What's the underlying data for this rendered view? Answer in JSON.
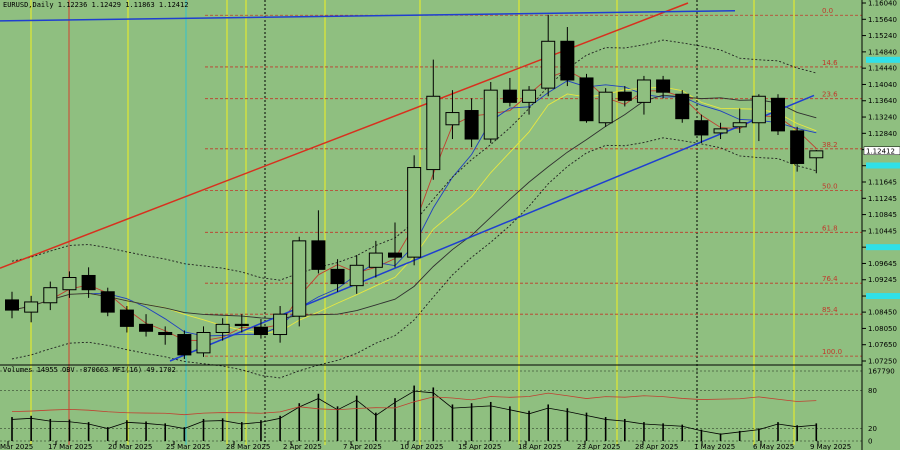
{
  "header": {
    "symbol_line": "EURUSD,Daily  1.12236 1.12429 1.11863 1.12412",
    "indicator_line": "Volumes 14955  OBV -870663  MFI(16) 49.1702"
  },
  "colors": {
    "background": "#8fbf80",
    "bull_candle": "#8fbf80",
    "bear_candle": "#000000",
    "trend_red": "#d8301e",
    "trend_blue": "#1f3fd0",
    "fib_level": "#c0392b",
    "vline_yellow": "#f0f020",
    "vline_red": "#d04030",
    "vline_cyan": "#30c0d0",
    "price_marker": "#30e0e8"
  },
  "chart_data": {
    "type": "candlestick",
    "symbol": "EURUSD",
    "timeframe": "Daily",
    "ylim": [
      1.0725,
      1.1604
    ],
    "price_ticks": [
      "1.16040",
      "1.15640",
      "1.15240",
      "1.14840",
      "1.14440",
      "1.14040",
      "1.13640",
      "1.13240",
      "1.12840",
      "1.12440",
      "1.12045",
      "1.11645",
      "1.11245",
      "1.10845",
      "1.10445",
      "1.10045",
      "1.09645",
      "1.09245",
      "1.08845",
      "1.08450",
      "1.08050",
      "1.07650",
      "1.07250"
    ],
    "date_labels": [
      "Mar 2025",
      "17 Mar 2025",
      "20 Mar 2025",
      "25 Mar 2025",
      "28 Mar 2025",
      "2 Apr 2025",
      "7 Apr 2025",
      "10 Apr 2025",
      "15 Apr 2025",
      "18 Apr 2025",
      "23 Apr 2025",
      "28 Apr 2025",
      "1 May 2025",
      "6 May 2025",
      "9 May 2025"
    ],
    "fib_levels": [
      {
        "label": "0.0",
        "price": 1.1574
      },
      {
        "label": "14.6",
        "price": 1.1447
      },
      {
        "label": "23.6",
        "price": 1.1369
      },
      {
        "label": "38.2",
        "price": 1.1246
      },
      {
        "label": "50.0",
        "price": 1.1144
      },
      {
        "label": "61.8",
        "price": 1.1041
      },
      {
        "label": "76.4",
        "price": 1.0916
      },
      {
        "label": "85.4",
        "price": 1.084
      },
      {
        "label": "100.0",
        "price": 1.0737
      }
    ],
    "candles": [
      {
        "o": 1.0875,
        "h": 1.0895,
        "l": 1.083,
        "c": 1.085
      },
      {
        "o": 1.0845,
        "h": 1.0885,
        "l": 1.082,
        "c": 1.087
      },
      {
        "o": 1.0868,
        "h": 1.092,
        "l": 1.085,
        "c": 1.0905
      },
      {
        "o": 1.09,
        "h": 1.0945,
        "l": 1.088,
        "c": 1.093
      },
      {
        "o": 1.0935,
        "h": 1.0955,
        "l": 1.088,
        "c": 1.09
      },
      {
        "o": 1.0895,
        "h": 1.0905,
        "l": 1.0835,
        "c": 1.0845
      },
      {
        "o": 1.085,
        "h": 1.086,
        "l": 1.0795,
        "c": 1.081
      },
      {
        "o": 1.0815,
        "h": 1.084,
        "l": 1.0785,
        "c": 1.0798
      },
      {
        "o": 1.0795,
        "h": 1.081,
        "l": 1.0765,
        "c": 1.079
      },
      {
        "o": 1.079,
        "h": 1.08,
        "l": 1.073,
        "c": 1.074
      },
      {
        "o": 1.0745,
        "h": 1.081,
        "l": 1.0735,
        "c": 1.0795
      },
      {
        "o": 1.0795,
        "h": 1.083,
        "l": 1.0775,
        "c": 1.0815
      },
      {
        "o": 1.0815,
        "h": 1.084,
        "l": 1.0795,
        "c": 1.0812
      },
      {
        "o": 1.0808,
        "h": 1.0828,
        "l": 1.078,
        "c": 1.079
      },
      {
        "o": 1.079,
        "h": 1.086,
        "l": 1.077,
        "c": 1.084
      },
      {
        "o": 1.0835,
        "h": 1.103,
        "l": 1.081,
        "c": 1.102
      },
      {
        "o": 1.102,
        "h": 1.1095,
        "l": 1.094,
        "c": 1.095
      },
      {
        "o": 1.095,
        "h": 1.0975,
        "l": 1.0895,
        "c": 1.0915
      },
      {
        "o": 1.091,
        "h": 1.0985,
        "l": 1.089,
        "c": 1.096
      },
      {
        "o": 1.0955,
        "h": 1.102,
        "l": 1.093,
        "c": 1.099
      },
      {
        "o": 1.099,
        "h": 1.1065,
        "l": 1.0955,
        "c": 1.098
      },
      {
        "o": 1.098,
        "h": 1.123,
        "l": 1.096,
        "c": 1.12
      },
      {
        "o": 1.1195,
        "h": 1.1465,
        "l": 1.117,
        "c": 1.1375
      },
      {
        "o": 1.1305,
        "h": 1.139,
        "l": 1.127,
        "c": 1.1335
      },
      {
        "o": 1.134,
        "h": 1.137,
        "l": 1.125,
        "c": 1.127
      },
      {
        "o": 1.127,
        "h": 1.141,
        "l": 1.126,
        "c": 1.139
      },
      {
        "o": 1.139,
        "h": 1.142,
        "l": 1.135,
        "c": 1.136
      },
      {
        "o": 1.136,
        "h": 1.14,
        "l": 1.133,
        "c": 1.139
      },
      {
        "o": 1.1395,
        "h": 1.1575,
        "l": 1.1375,
        "c": 1.151
      },
      {
        "o": 1.151,
        "h": 1.1545,
        "l": 1.14,
        "c": 1.1415
      },
      {
        "o": 1.142,
        "h": 1.143,
        "l": 1.131,
        "c": 1.1315
      },
      {
        "o": 1.131,
        "h": 1.1395,
        "l": 1.13,
        "c": 1.1385
      },
      {
        "o": 1.1385,
        "h": 1.14,
        "l": 1.135,
        "c": 1.1365
      },
      {
        "o": 1.136,
        "h": 1.1425,
        "l": 1.133,
        "c": 1.1415
      },
      {
        "o": 1.1415,
        "h": 1.1425,
        "l": 1.137,
        "c": 1.1385
      },
      {
        "o": 1.138,
        "h": 1.139,
        "l": 1.131,
        "c": 1.132
      },
      {
        "o": 1.1315,
        "h": 1.133,
        "l": 1.126,
        "c": 1.128
      },
      {
        "o": 1.1285,
        "h": 1.131,
        "l": 1.127,
        "c": 1.1295
      },
      {
        "o": 1.13,
        "h": 1.1345,
        "l": 1.1285,
        "c": 1.131
      },
      {
        "o": 1.131,
        "h": 1.138,
        "l": 1.1265,
        "c": 1.1375
      },
      {
        "o": 1.137,
        "h": 1.138,
        "l": 1.128,
        "c": 1.129
      },
      {
        "o": 1.129,
        "h": 1.13,
        "l": 1.119,
        "c": 1.121
      },
      {
        "o": 1.1224,
        "h": 1.1243,
        "l": 1.1186,
        "c": 1.1241
      }
    ],
    "volume": [
      38,
      40,
      35,
      34,
      30,
      22,
      33,
      31,
      28,
      22,
      35,
      36,
      30,
      33,
      40,
      60,
      75,
      55,
      72,
      45,
      68,
      88,
      85,
      58,
      60,
      62,
      55,
      48,
      58,
      52,
      45,
      38,
      35,
      30,
      28,
      26,
      18,
      12,
      16,
      20,
      30,
      25,
      28
    ],
    "volume_axis_ticks": [
      "167790",
      "80",
      "20",
      "0"
    ],
    "mfi_period": 16,
    "current_price": "1.12412",
    "price_markers": [
      {
        "price": "1.14645"
      },
      {
        "price": "1.12050"
      },
      {
        "price": "1.10045"
      },
      {
        "price": "1.08845"
      }
    ]
  }
}
